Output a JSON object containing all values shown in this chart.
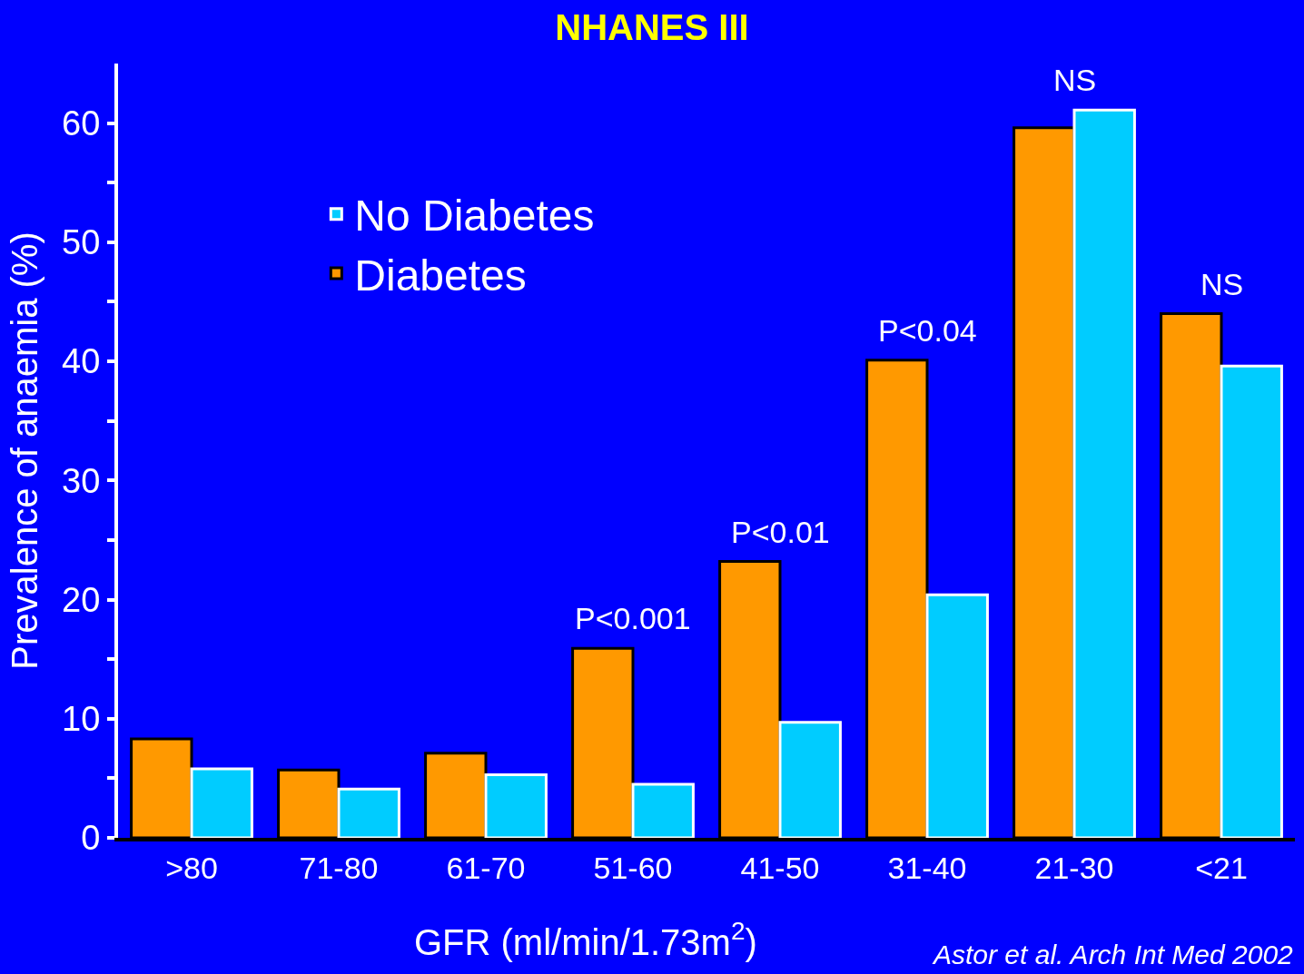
{
  "chart_data": {
    "type": "bar",
    "title": "NHANES III",
    "xlabel": "GFR (ml/min/1.73m$^{2}$)",
    "ylabel": "Prevalence of anaemia (%)",
    "categories": [
      ">80",
      "71-80",
      "61-70",
      "51-60",
      "41-50",
      "31-40",
      "21-30",
      "<21"
    ],
    "series": [
      {
        "name": "Diabetes",
        "color": "#ff9900",
        "values": [
          8.3,
          5.7,
          7.1,
          15.9,
          23.2,
          40.1,
          59.6,
          44.0
        ]
      },
      {
        "name": "No Diabetes",
        "color": "#00ccff",
        "values": [
          5.8,
          4.1,
          5.3,
          4.5,
          9.7,
          20.4,
          61.1,
          39.6
        ]
      }
    ],
    "ylim": [
      0,
      65
    ],
    "yticks": [
      0,
      {
        "value": 5,
        "label": null
      },
      10,
      {
        "value": 15,
        "label": null
      },
      20,
      {
        "value": 25,
        "label": null
      },
      30,
      {
        "value": 35,
        "label": null
      },
      40,
      {
        "value": 45,
        "label": null
      },
      50,
      {
        "value": 55,
        "label": null
      },
      60
    ],
    "annotations": [
      "P<0.001",
      "P<0.01",
      "P<0.04",
      "NS",
      "NS",
      "Astor et al. Arch Int Med 2002"
    ],
    "legend": "top left",
    "grid": false
  }
}
